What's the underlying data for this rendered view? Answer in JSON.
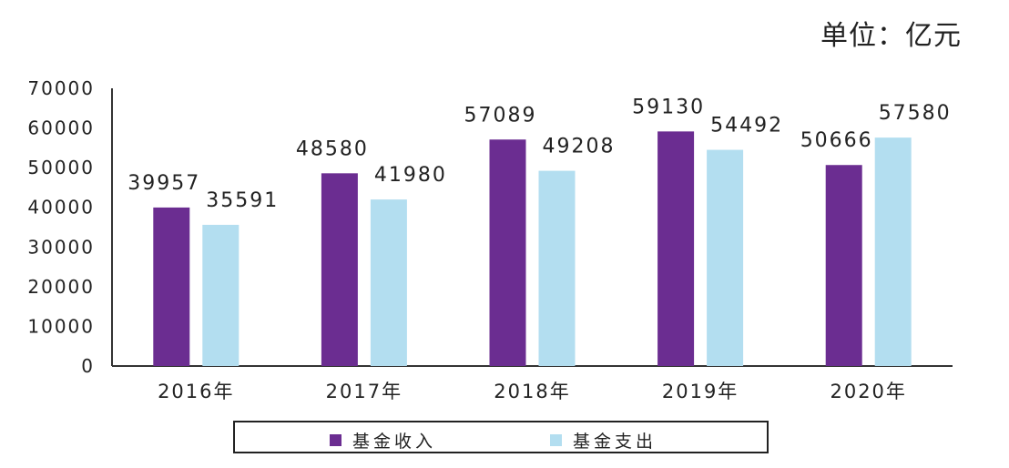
{
  "unit_label": "单位：亿元",
  "chart_data": {
    "type": "bar",
    "categories": [
      "2016年",
      "2017年",
      "2018年",
      "2019年",
      "2020年"
    ],
    "series": [
      {
        "name": "基金收入",
        "color": "#6b2d91",
        "values": [
          39957,
          48580,
          57089,
          59130,
          50666
        ]
      },
      {
        "name": "基金支出",
        "color": "#b3def0",
        "values": [
          35591,
          41980,
          49208,
          54492,
          57580
        ]
      }
    ],
    "y_ticks": [
      "0",
      "10000",
      "20000",
      "30000",
      "40000",
      "50000",
      "60000",
      "70000"
    ],
    "data_labels": [
      [
        "39957",
        "48580",
        "57089",
        "59130",
        "50666"
      ],
      [
        "35591",
        "41980",
        "49208",
        "54492",
        "57580"
      ]
    ],
    "ylim": [
      0,
      70000
    ],
    "grid": false,
    "legend_position": "bottom"
  }
}
